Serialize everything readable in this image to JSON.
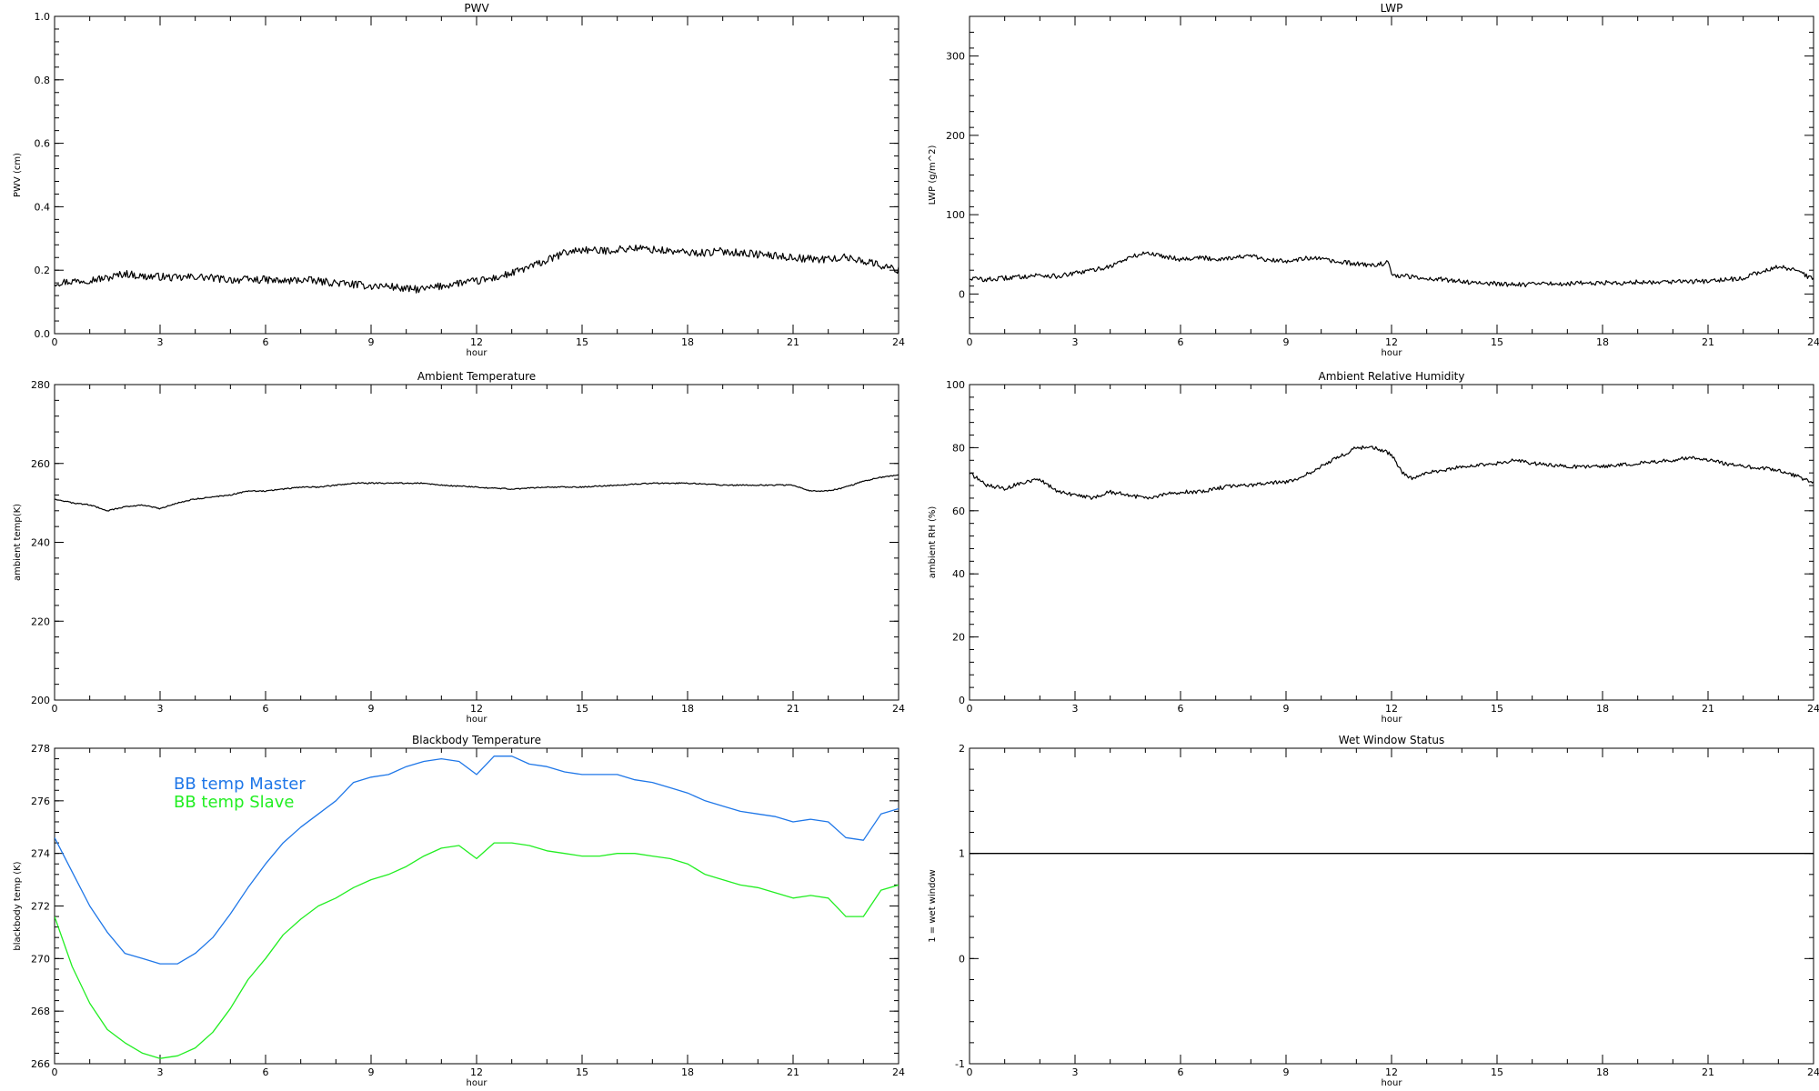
{
  "chart_data": [
    {
      "id": "pwv",
      "type": "line",
      "title": "PWV",
      "xlabel": "hour",
      "ylabel": "PWV (cm)",
      "xlim": [
        0,
        24
      ],
      "ylim": [
        0.0,
        1.0
      ],
      "xticks": [
        0,
        3,
        6,
        9,
        12,
        15,
        18,
        21,
        24
      ],
      "yticks": [
        0.0,
        0.2,
        0.4,
        0.6,
        0.8,
        1.0
      ],
      "ytick_labels": [
        "0.0",
        "0.2",
        "0.4",
        "0.6",
        "0.8",
        "1.0"
      ],
      "noise": 0.012,
      "series": [
        {
          "color": "#000000",
          "x": [
            0,
            0.5,
            1,
            1.5,
            2,
            2.5,
            3,
            3.5,
            4,
            4.5,
            5,
            5.5,
            6,
            6.5,
            7,
            7.5,
            8,
            8.5,
            9,
            9.5,
            10,
            10.5,
            11,
            11.5,
            12,
            12.5,
            13,
            13.5,
            14,
            14.5,
            15,
            15.5,
            16,
            16.5,
            17,
            17.5,
            18,
            18.5,
            19,
            19.5,
            20,
            20.5,
            21,
            21.5,
            22,
            22.5,
            23,
            23.5,
            24
          ],
          "y": [
            0.16,
            0.165,
            0.17,
            0.175,
            0.19,
            0.18,
            0.18,
            0.175,
            0.18,
            0.175,
            0.17,
            0.17,
            0.17,
            0.165,
            0.17,
            0.165,
            0.16,
            0.155,
            0.15,
            0.15,
            0.14,
            0.14,
            0.15,
            0.16,
            0.165,
            0.175,
            0.19,
            0.21,
            0.23,
            0.255,
            0.265,
            0.26,
            0.265,
            0.27,
            0.265,
            0.26,
            0.255,
            0.255,
            0.26,
            0.255,
            0.25,
            0.245,
            0.24,
            0.235,
            0.235,
            0.24,
            0.23,
            0.215,
            0.2
          ]
        }
      ]
    },
    {
      "id": "lwp",
      "type": "line",
      "title": "LWP",
      "xlabel": "hour",
      "ylabel": "LWP (g/m^2)",
      "xlim": [
        0,
        24
      ],
      "ylim": [
        -50,
        350
      ],
      "xticks": [
        0,
        3,
        6,
        9,
        12,
        15,
        18,
        21,
        24
      ],
      "yticks": [
        0,
        100,
        200,
        300
      ],
      "ytick_labels": [
        "0",
        "100",
        "200",
        "300"
      ],
      "noise": 3,
      "series": [
        {
          "color": "#000000",
          "x": [
            0,
            0.5,
            1,
            1.5,
            2,
            2.5,
            3,
            3.5,
            4,
            4.5,
            5,
            5.5,
            6,
            6.5,
            7,
            7.5,
            8,
            8.5,
            9,
            9.5,
            10,
            10.5,
            11,
            11.5,
            11.9,
            12,
            12.5,
            13,
            13.5,
            14,
            14.5,
            15,
            15.5,
            16,
            16.5,
            17,
            17.5,
            18,
            18.5,
            19,
            19.5,
            20,
            20.5,
            21,
            21.5,
            22,
            22.5,
            23,
            23.5,
            24
          ],
          "y": [
            20,
            18,
            20,
            22,
            24,
            22,
            26,
            30,
            35,
            45,
            52,
            48,
            44,
            46,
            44,
            46,
            48,
            42,
            42,
            45,
            44,
            40,
            38,
            36,
            40,
            24,
            22,
            20,
            18,
            16,
            14,
            13,
            12,
            12,
            13,
            13,
            14,
            14,
            14,
            15,
            15,
            16,
            16,
            16,
            18,
            20,
            28,
            35,
            30,
            18
          ]
        }
      ]
    },
    {
      "id": "ambient-temperature",
      "type": "line",
      "title": "Ambient Temperature",
      "xlabel": "hour",
      "ylabel": "ambient temp(K)",
      "xlim": [
        0,
        24
      ],
      "ylim": [
        200,
        280
      ],
      "xticks": [
        0,
        3,
        6,
        9,
        12,
        15,
        18,
        21,
        24
      ],
      "yticks": [
        200,
        220,
        240,
        260,
        280
      ],
      "ytick_labels": [
        "200",
        "220",
        "240",
        "260",
        "280"
      ],
      "noise": 0.15,
      "series": [
        {
          "color": "#000000",
          "x": [
            0,
            0.5,
            1,
            1.5,
            2,
            2.5,
            3,
            3.5,
            4,
            4.5,
            5,
            5.5,
            6,
            6.5,
            7,
            7.5,
            8,
            8.5,
            9,
            9.5,
            10,
            10.5,
            11,
            12,
            13,
            14,
            15,
            16,
            17,
            18,
            19,
            20,
            21,
            21.5,
            22,
            22.5,
            23,
            23.5,
            24
          ],
          "y": [
            251,
            250,
            249.5,
            248,
            249,
            249.5,
            248.5,
            250,
            251,
            251.5,
            252,
            253,
            253,
            253.5,
            254,
            254,
            254.5,
            255,
            255,
            255,
            255,
            255,
            254.5,
            254,
            253.5,
            254,
            254,
            254.5,
            255,
            255,
            254.5,
            254.5,
            254.5,
            253,
            253,
            254,
            255.5,
            256.5,
            257
          ]
        }
      ]
    },
    {
      "id": "ambient-relative-humidity",
      "type": "line",
      "title": "Ambient Relative Humidity",
      "xlabel": "hour",
      "ylabel": "ambient RH (%)",
      "xlim": [
        0,
        24
      ],
      "ylim": [
        0,
        100
      ],
      "xticks": [
        0,
        3,
        6,
        9,
        12,
        15,
        18,
        21,
        24
      ],
      "yticks": [
        0,
        20,
        40,
        60,
        80,
        100
      ],
      "ytick_labels": [
        "0",
        "20",
        "40",
        "60",
        "80",
        "100"
      ],
      "noise": 0.6,
      "series": [
        {
          "color": "#000000",
          "x": [
            0,
            0.5,
            1,
            1.5,
            2,
            2.5,
            3,
            3.5,
            4,
            4.5,
            5,
            5.5,
            6,
            6.5,
            7,
            7.5,
            8,
            8.5,
            9,
            9.5,
            10,
            10.5,
            11,
            11.5,
            12,
            12.3,
            12.6,
            13,
            14,
            15,
            15.5,
            16,
            17,
            18,
            19,
            20,
            20.5,
            21,
            22,
            23,
            23.5,
            24
          ],
          "y": [
            72,
            68,
            67,
            69,
            70,
            66,
            65,
            64,
            66,
            65,
            64,
            65,
            66,
            66,
            67,
            68,
            68,
            69,
            69,
            71,
            74,
            77,
            80,
            80,
            78,
            72,
            70,
            72,
            74,
            75,
            76,
            75,
            74,
            74,
            75,
            76,
            77,
            76,
            74,
            73,
            71,
            69
          ]
        }
      ]
    },
    {
      "id": "blackbody-temperature",
      "type": "line",
      "title": "Blackbody Temperature",
      "xlabel": "hour",
      "ylabel": "blackbody temp (K)",
      "xlim": [
        0,
        24
      ],
      "ylim": [
        266,
        278
      ],
      "xticks": [
        0,
        3,
        6,
        9,
        12,
        15,
        18,
        21,
        24
      ],
      "yticks": [
        266,
        268,
        270,
        272,
        274,
        276,
        278
      ],
      "ytick_labels": [
        "266",
        "268",
        "270",
        "272",
        "274",
        "276",
        "278"
      ],
      "noise": 0,
      "legend": "top-left",
      "series": [
        {
          "name": "BB temp Master",
          "color": "#1f77e8",
          "x": [
            0,
            0.5,
            1,
            1.5,
            2,
            2.5,
            3,
            3.5,
            4,
            4.5,
            5,
            5.5,
            6,
            6.5,
            7,
            7.5,
            8,
            8.5,
            9,
            9.5,
            10,
            10.5,
            11,
            11.5,
            12,
            12.5,
            13,
            13.5,
            14,
            14.5,
            15,
            15.5,
            16,
            16.5,
            17,
            17.5,
            18,
            18.5,
            19,
            19.5,
            20,
            20.5,
            21,
            21.5,
            22,
            22.5,
            23,
            23.5,
            24
          ],
          "y": [
            274.6,
            273.3,
            272.0,
            271.0,
            270.2,
            270.0,
            269.8,
            269.8,
            270.2,
            270.8,
            271.7,
            272.7,
            273.6,
            274.4,
            275.0,
            275.5,
            276.0,
            276.7,
            276.9,
            277.0,
            277.3,
            277.5,
            277.6,
            277.5,
            277.0,
            277.7,
            277.7,
            277.4,
            277.3,
            277.1,
            277.0,
            277.0,
            277.0,
            276.8,
            276.7,
            276.5,
            276.3,
            276.0,
            275.8,
            275.6,
            275.5,
            275.4,
            275.2,
            275.3,
            275.2,
            274.6,
            274.5,
            275.5,
            275.7
          ]
        },
        {
          "name": "BB temp Slave",
          "color": "#22ee22",
          "x": [
            0,
            0.5,
            1,
            1.5,
            2,
            2.5,
            3,
            3.5,
            4,
            4.5,
            5,
            5.5,
            6,
            6.5,
            7,
            7.5,
            8,
            8.5,
            9,
            9.5,
            10,
            10.5,
            11,
            11.5,
            12,
            12.5,
            13,
            13.5,
            14,
            14.5,
            15,
            15.5,
            16,
            16.5,
            17,
            17.5,
            18,
            18.5,
            19,
            19.5,
            20,
            20.5,
            21,
            21.5,
            22,
            22.5,
            23,
            23.5,
            24
          ],
          "y": [
            271.6,
            269.7,
            268.3,
            267.3,
            266.8,
            266.4,
            266.2,
            266.3,
            266.6,
            267.2,
            268.1,
            269.2,
            270.0,
            270.9,
            271.5,
            272.0,
            272.3,
            272.7,
            273.0,
            273.2,
            273.5,
            273.9,
            274.2,
            274.3,
            273.8,
            274.4,
            274.4,
            274.3,
            274.1,
            274.0,
            273.9,
            273.9,
            274.0,
            274.0,
            273.9,
            273.8,
            273.6,
            273.2,
            273.0,
            272.8,
            272.7,
            272.5,
            272.3,
            272.4,
            272.3,
            271.6,
            271.6,
            272.6,
            272.8
          ]
        }
      ]
    },
    {
      "id": "wet-window-status",
      "type": "line",
      "title": "Wet Window Status",
      "xlabel": "hour",
      "ylabel": "1 = wet window",
      "xlim": [
        0,
        24
      ],
      "ylim": [
        -1,
        2
      ],
      "xticks": [
        0,
        3,
        6,
        9,
        12,
        15,
        18,
        21,
        24
      ],
      "yticks": [
        -1,
        0,
        1,
        2
      ],
      "ytick_labels": [
        "-1",
        "0",
        "1",
        "2"
      ],
      "noise": 0,
      "series": [
        {
          "color": "#000000",
          "x": [
            0,
            24
          ],
          "y": [
            1,
            1
          ]
        }
      ]
    }
  ]
}
